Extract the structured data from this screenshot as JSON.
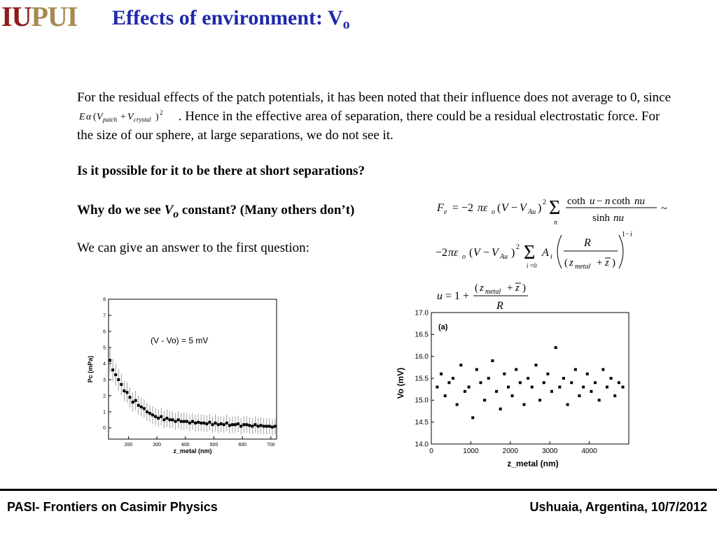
{
  "header": {
    "logo_part1": "IU",
    "logo_part2": "PUI",
    "title_main": "Effects of environment: V",
    "title_sub": "o"
  },
  "body": {
    "para_before": "For the residual effects of the patch potentials, it has been noted that their influence does not average to 0, since",
    "para_after": ". Hence in the effective area of separation, there could be a residual electrostatic force. For the size of our sphere, at large separations, we do not see it.",
    "question1": "Is it possible for it to be there at short separations?",
    "question2_pre": "Why do we see",
    "question2_var": "V",
    "question2_sub": "o",
    "question2_post": "constant? (Many others don’t)",
    "statement": "We can give an answer to the first question:"
  },
  "equations": {
    "inline": "Eα(V_patch + V_crystal)^2",
    "force_line1": "F_e = −2πε_o (V − V_Au)^2 Σ_n (coth u − n coth nu) / sinh nu ~",
    "force_line2": "− 2πε_o (V − V_Au)^2 Σ_{i=0} A_i ( R / (z_metal + z̄) )^(1−i)",
    "u_def": "u = 1 + (z_metal + z̄) / R"
  },
  "colors": {
    "title_blue": "#1e2aa8",
    "logo_red": "#8e1b1b",
    "logo_gold": "#a68a4f"
  },
  "footer": {
    "left": "PASI- Frontiers on Casimir Physics",
    "right": "Ushuaia, Argentina, 10/7/2012"
  },
  "chart_data": [
    {
      "type": "scatter",
      "annotation": "(V - Vo) = 5 mV",
      "xlabel": "z_metal (nm)",
      "ylabel": "Pc (mPa)",
      "xlim": [
        130,
        720
      ],
      "ylim": [
        -0.7,
        8
      ],
      "xticks": [
        200,
        300,
        400,
        500,
        600,
        700
      ],
      "yticks": [
        0,
        1,
        2,
        3,
        4,
        5,
        6,
        7,
        8
      ],
      "error_bars": true,
      "x": [
        135,
        145,
        155,
        165,
        175,
        185,
        195,
        205,
        215,
        225,
        235,
        245,
        255,
        265,
        275,
        285,
        295,
        305,
        315,
        325,
        335,
        345,
        355,
        365,
        375,
        385,
        395,
        405,
        415,
        425,
        435,
        445,
        455,
        465,
        475,
        485,
        495,
        505,
        515,
        525,
        535,
        545,
        555,
        565,
        575,
        585,
        595,
        605,
        615,
        625,
        635,
        645,
        655,
        665,
        675,
        685,
        695,
        705,
        715
      ],
      "y": [
        4.2,
        3.6,
        3.3,
        3.0,
        2.7,
        2.3,
        2.2,
        1.9,
        1.6,
        1.7,
        1.4,
        1.3,
        1.2,
        1.0,
        0.9,
        0.8,
        0.7,
        0.6,
        0.7,
        0.5,
        0.6,
        0.5,
        0.5,
        0.4,
        0.5,
        0.4,
        0.4,
        0.4,
        0.3,
        0.4,
        0.3,
        0.35,
        0.3,
        0.3,
        0.25,
        0.35,
        0.2,
        0.3,
        0.2,
        0.25,
        0.2,
        0.3,
        0.15,
        0.2,
        0.2,
        0.25,
        0.1,
        0.2,
        0.2,
        0.15,
        0.1,
        0.2,
        0.1,
        0.15,
        0.1,
        0.1,
        0.1,
        0.05,
        0.1
      ]
    },
    {
      "type": "scatter",
      "panel_label": "(a)",
      "xlabel": "z_metal (nm)",
      "ylabel": "Vo (mV)",
      "xlim": [
        0,
        5000
      ],
      "ylim": [
        14.0,
        17.0
      ],
      "xticks": [
        0,
        1000,
        2000,
        3000,
        4000
      ],
      "yticks": [
        14.0,
        14.5,
        15.0,
        15.5,
        16.0,
        16.5,
        17.0
      ],
      "x": [
        150,
        250,
        350,
        450,
        550,
        650,
        750,
        850,
        950,
        1050,
        1150,
        1250,
        1350,
        1450,
        1550,
        1650,
        1750,
        1850,
        1950,
        2050,
        2150,
        2250,
        2350,
        2450,
        2550,
        2650,
        2750,
        2850,
        2950,
        3050,
        3150,
        3250,
        3350,
        3450,
        3550,
        3650,
        3750,
        3850,
        3950,
        4050,
        4150,
        4250,
        4350,
        4450,
        4550,
        4650,
        4750,
        4850
      ],
      "y": [
        15.3,
        15.6,
        15.1,
        15.4,
        15.5,
        14.9,
        15.8,
        15.2,
        15.3,
        14.6,
        15.7,
        15.4,
        15.0,
        15.5,
        15.9,
        15.2,
        14.8,
        15.6,
        15.3,
        15.1,
        15.7,
        15.4,
        14.9,
        15.5,
        15.3,
        15.8,
        15.0,
        15.4,
        15.6,
        15.2,
        16.2,
        15.3,
        15.5,
        14.9,
        15.4,
        15.7,
        15.1,
        15.3,
        15.6,
        15.2,
        15.4,
        15.0,
        15.7,
        15.3,
        15.5,
        15.1,
        15.4,
        15.3
      ]
    }
  ]
}
